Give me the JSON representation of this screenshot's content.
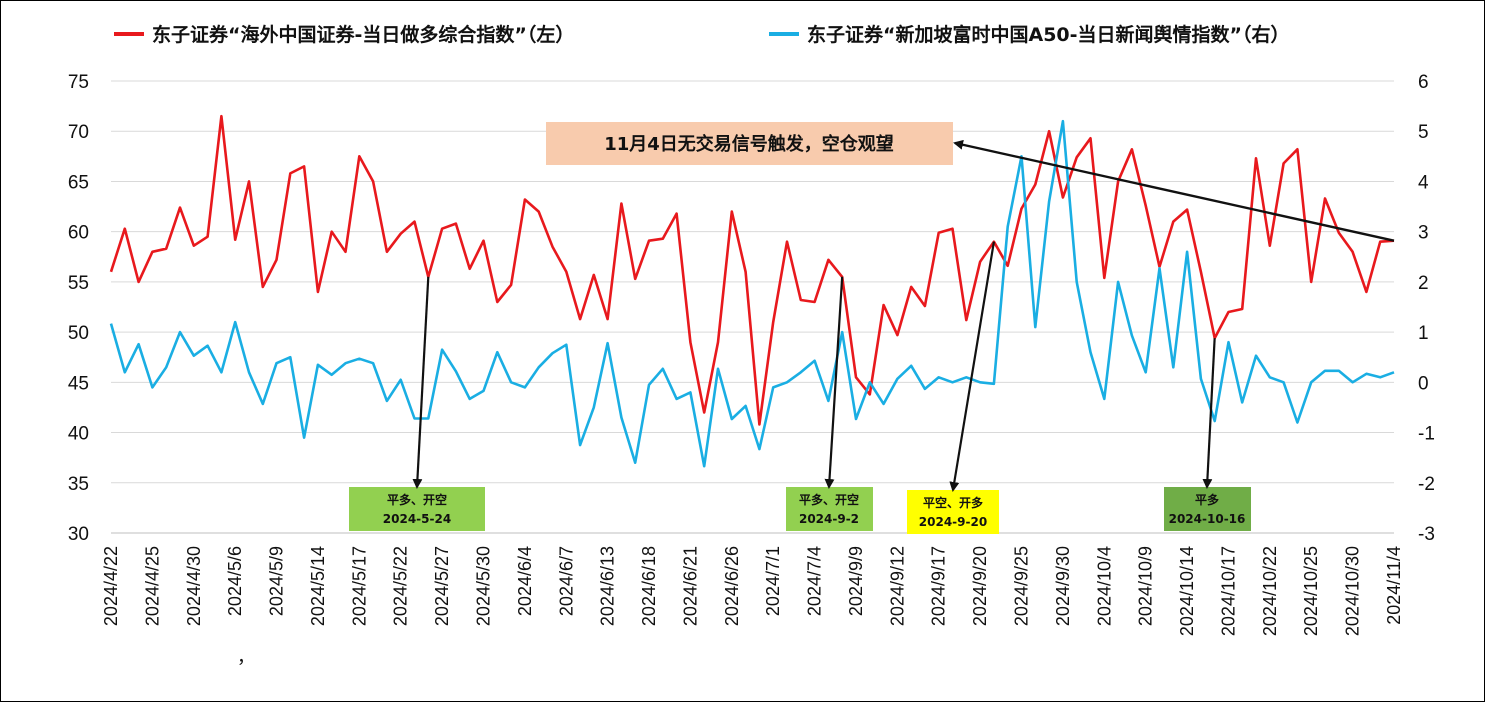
{
  "chart_data": {
    "type": "line",
    "series": [
      {
        "name": "东子证券“海外中国证券-当日做多综合指数”（左）",
        "axis": "left",
        "color": "#e8191d",
        "values": [
          56,
          60.3,
          55,
          58,
          58.3,
          62.4,
          58.6,
          59.5,
          71.5,
          59.2,
          65,
          54.5,
          57.2,
          65.8,
          66.5,
          54,
          60,
          58,
          67.5,
          65,
          58,
          59.8,
          61,
          55.5,
          60.3,
          60.8,
          56.3,
          59.1,
          53,
          54.7,
          63.2,
          62,
          58.5,
          56,
          51.3,
          55.7,
          51.3,
          62.8,
          55.3,
          59.1,
          59.3,
          61.8,
          49,
          42,
          49,
          62,
          56,
          40.8,
          51,
          59,
          53.2,
          53,
          57.2,
          55.5,
          45.5,
          43.8,
          52.7,
          49.7,
          54.5,
          52.6,
          59.9,
          60.3,
          51.2,
          57,
          59,
          56.6,
          62.3,
          64.7,
          70,
          63.4,
          67.4,
          69.3,
          55.4,
          65,
          68.2,
          62.6,
          56.5,
          61,
          62.2,
          56,
          49.4,
          52,
          52.3,
          67.3,
          58.6,
          66.8,
          68.2,
          55,
          63.3,
          59.9,
          58,
          54,
          59,
          59.1
        ]
      },
      {
        "name": "东子证券“新加坡富时中国A50-当日新闻舆情指数”（右）",
        "axis": "right",
        "color": "#1aaee3",
        "values": [
          1.17,
          0.2,
          0.76,
          -0.1,
          0.3,
          1.0,
          0.53,
          0.73,
          0.2,
          1.2,
          0.2,
          -0.43,
          0.38,
          0.5,
          -1.1,
          0.35,
          0.15,
          0.38,
          0.47,
          0.38,
          -0.37,
          0.05,
          -0.72,
          -0.72,
          0.65,
          0.22,
          -0.33,
          -0.17,
          0.6,
          0.0,
          -0.1,
          0.3,
          0.58,
          0.75,
          -1.25,
          -0.5,
          0.78,
          -0.7,
          -1.6,
          -0.05,
          0.27,
          -0.33,
          -0.2,
          -1.67,
          0.27,
          -0.73,
          -0.47,
          -1.33,
          -0.1,
          0.0,
          0.2,
          0.43,
          -0.37,
          1.0,
          -0.73,
          0.0,
          -0.43,
          0.07,
          0.33,
          -0.13,
          0.1,
          0.0,
          0.1,
          0.0,
          -0.03,
          3.1,
          4.5,
          1.1,
          3.6,
          5.2,
          2.0,
          0.6,
          -0.33,
          2.0,
          0.93,
          0.2,
          2.27,
          0.3,
          2.6,
          0.07,
          -0.77,
          0.8,
          -0.4,
          0.53,
          0.1,
          0.0,
          -0.8,
          0.0,
          0.23,
          0.23,
          0.0,
          0.17,
          0.1,
          0.2
        ]
      }
    ],
    "left_axis": {
      "ylim": [
        30,
        75
      ],
      "ticks": [
        "30",
        "35",
        "40",
        "45",
        "50",
        "55",
        "60",
        "65",
        "70",
        "75"
      ]
    },
    "right_axis": {
      "ylim": [
        -3,
        6
      ],
      "ticks": [
        "-3",
        "-2",
        "-1",
        "0",
        "1",
        "2",
        "3",
        "4",
        "5",
        "6"
      ]
    },
    "x_tick_labels": [
      "2024/4/22",
      "2024/4/25",
      "2024/4/30",
      "2024/5/6",
      "2024/5/9",
      "2024/5/14",
      "2024/5/17",
      "2024/5/22",
      "2024/5/27",
      "2024/5/30",
      "2024/6/4",
      "2024/6/7",
      "2024/6/13",
      "2024/6/18",
      "2024/6/21",
      "2024/6/26",
      "2024/7/1",
      "2024/7/4",
      "2024/9/9",
      "2024/9/12",
      "2024/9/17",
      "2024/9/20",
      "2024/9/25",
      "2024/9/30",
      "2024/10/4",
      "2024/10/9",
      "2024/10/14",
      "2024/10/17",
      "2024/10/22",
      "2024/10/25",
      "2024/10/30",
      "2024/11/4"
    ],
    "x_tick_every": 3,
    "stray_mark": "，",
    "grid": true,
    "legend_position": "top",
    "signal_boxes": [
      {
        "line1": "平多、开空",
        "line2": "2024-5-24",
        "color": "#92d050",
        "target_index": 23
      },
      {
        "line1": "平多、开空",
        "line2": "2024-9-2",
        "color": "#92d050",
        "target_index": 53
      },
      {
        "line1": "平空、开多",
        "line2": "2024-9-20",
        "color": "#ffff00",
        "target_index": 64
      },
      {
        "line1": "平多",
        "line2": "2024-10-16",
        "color": "#70ad47",
        "target_index": 80
      }
    ],
    "annotation": {
      "text": "11月4日无交易信号触发，空仓观望",
      "color": "#f8cbad",
      "target_index": 93
    }
  }
}
